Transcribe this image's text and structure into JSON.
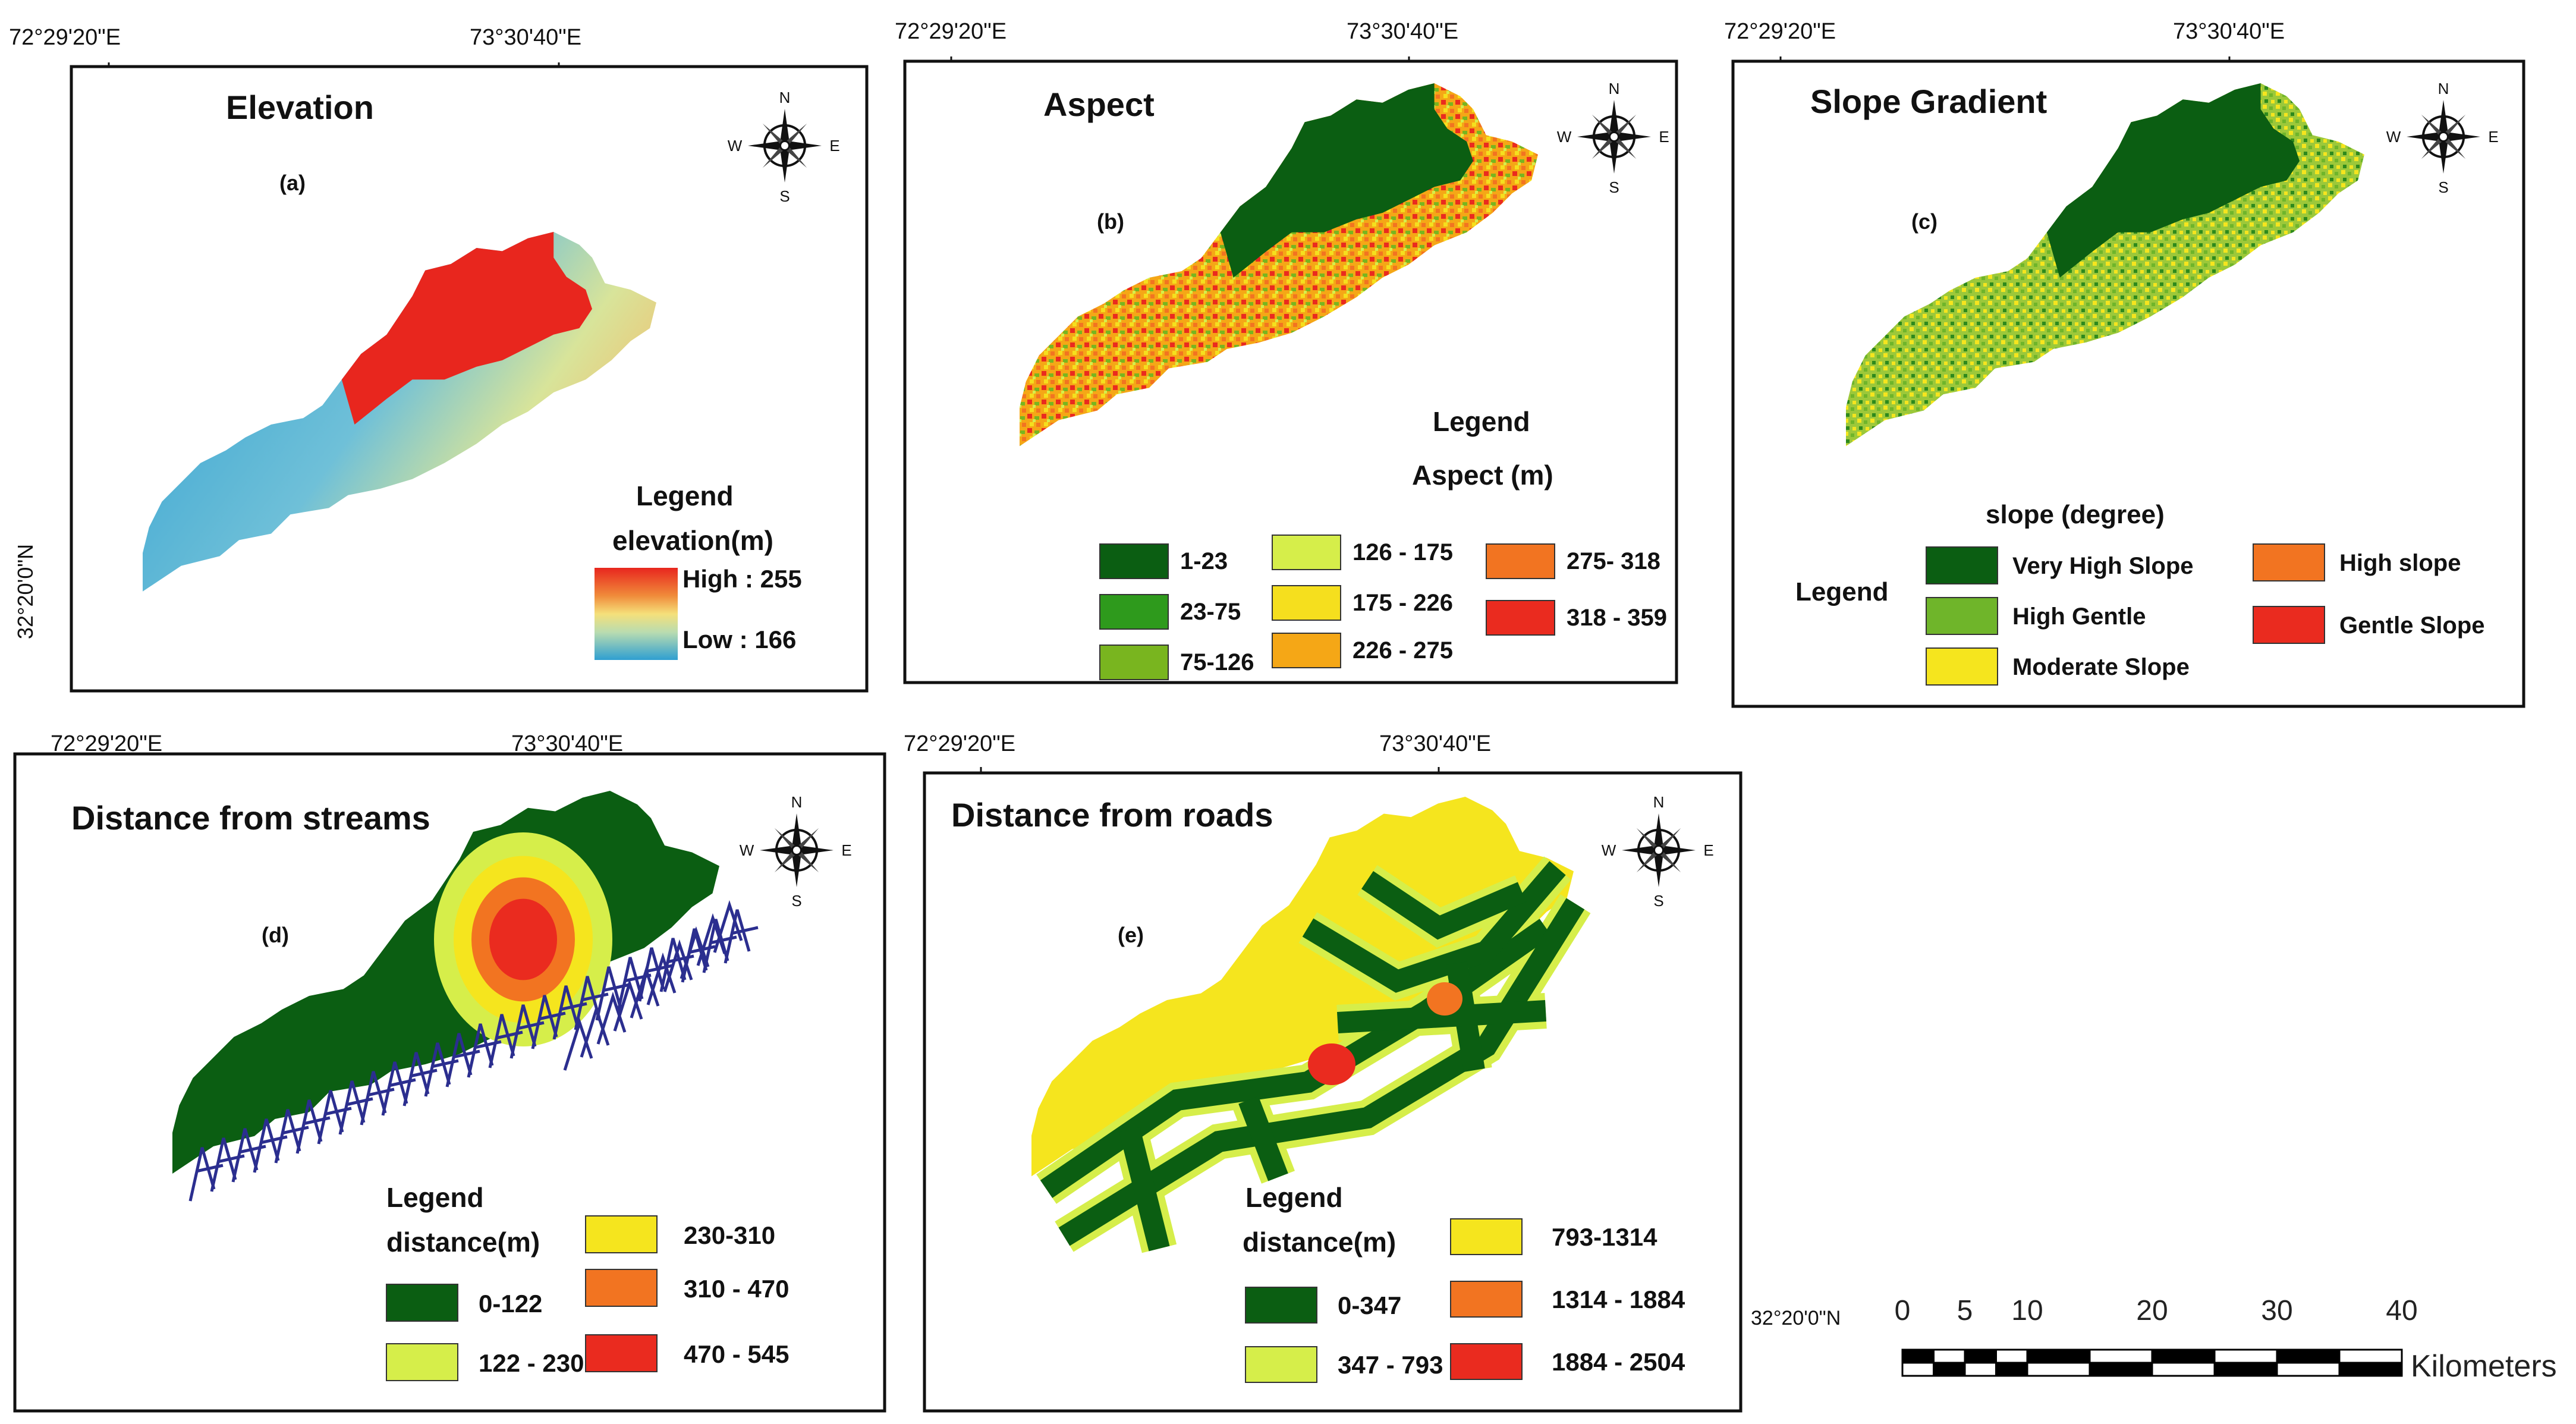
{
  "coordinates": {
    "lon_left": "72°29'20\"E",
    "lon_right": "73°30'40\"E",
    "lat": "32°20'0\"N",
    "lat_short": "32°20'0\"N"
  },
  "compass": {
    "north": "N",
    "south": "S",
    "east": "E",
    "west": "W"
  },
  "panels": {
    "a": {
      "title": "Elevation",
      "label": "(a)",
      "legend_title": "Legend",
      "legend_subtitle": "elevation(m)",
      "high_label": "High : 255",
      "low_label": "Low : 166",
      "ramp_colors": [
        "#e8261e",
        "#f08a3a",
        "#f5e07a",
        "#b9dcb0",
        "#4cb0d8",
        "#2f9fd1"
      ]
    },
    "b": {
      "title": "Aspect",
      "label": "(b)",
      "legend_title": "Legend",
      "legend_subtitle": "Aspect (m)",
      "classes": [
        {
          "label": "1-23",
          "color": "#0b5e12"
        },
        {
          "label": "23-75",
          "color": "#2e9a1c"
        },
        {
          "label": "75-126",
          "color": "#79b51f"
        },
        {
          "label": "126 - 175",
          "color": "#d6ee4a"
        },
        {
          "label": "175 - 226",
          "color": "#f5df1e"
        },
        {
          "label": "226 - 275",
          "color": "#f5a716"
        },
        {
          "label": "275- 318",
          "color": "#f27421"
        },
        {
          "label": "318 - 359",
          "color": "#ea2b1f"
        }
      ]
    },
    "c": {
      "title": "Slope Gradient",
      "label": "(c)",
      "legend_title": "Legend",
      "legend_subtitle": "slope (degree)",
      "classes": [
        {
          "label": "Very High Slope",
          "color": "#0b5e12"
        },
        {
          "label": "High Gentle",
          "color": "#6fb52a"
        },
        {
          "label": "Moderate Slope",
          "color": "#f5e51e"
        },
        {
          "label": "High slope",
          "color": "#f27421"
        },
        {
          "label": "Gentle Slope",
          "color": "#ea2b1f"
        }
      ]
    },
    "d": {
      "title": "Distance from streams",
      "label": "(d)",
      "legend_title": "Legend",
      "legend_subtitle": "distance(m)",
      "classes": [
        {
          "label": "0-122",
          "color": "#0b5e12"
        },
        {
          "label": "122 - 230",
          "color": "#d6ee4a"
        },
        {
          "label": "230-310",
          "color": "#f5e51e"
        },
        {
          "label": "310 - 470",
          "color": "#f27421"
        },
        {
          "label": "470 - 545",
          "color": "#ea2b1f"
        }
      ],
      "stream_color": "#2b2e8f"
    },
    "e": {
      "title": "Distance from roads",
      "label": "(e)",
      "legend_title": "Legend",
      "legend_subtitle": "distance(m)",
      "classes": [
        {
          "label": "0-347",
          "color": "#0b5e12"
        },
        {
          "label": "347 - 793",
          "color": "#d6ee4a"
        },
        {
          "label": "793-1314",
          "color": "#f5e51e"
        },
        {
          "label": "1314 - 1884",
          "color": "#f27421"
        },
        {
          "label": "1884 - 2504",
          "color": "#ea2b1f"
        }
      ]
    }
  },
  "scale_bar": {
    "ticks": [
      "0",
      "5",
      "10",
      "20",
      "30",
      "40"
    ],
    "unit": "Kilometers"
  }
}
